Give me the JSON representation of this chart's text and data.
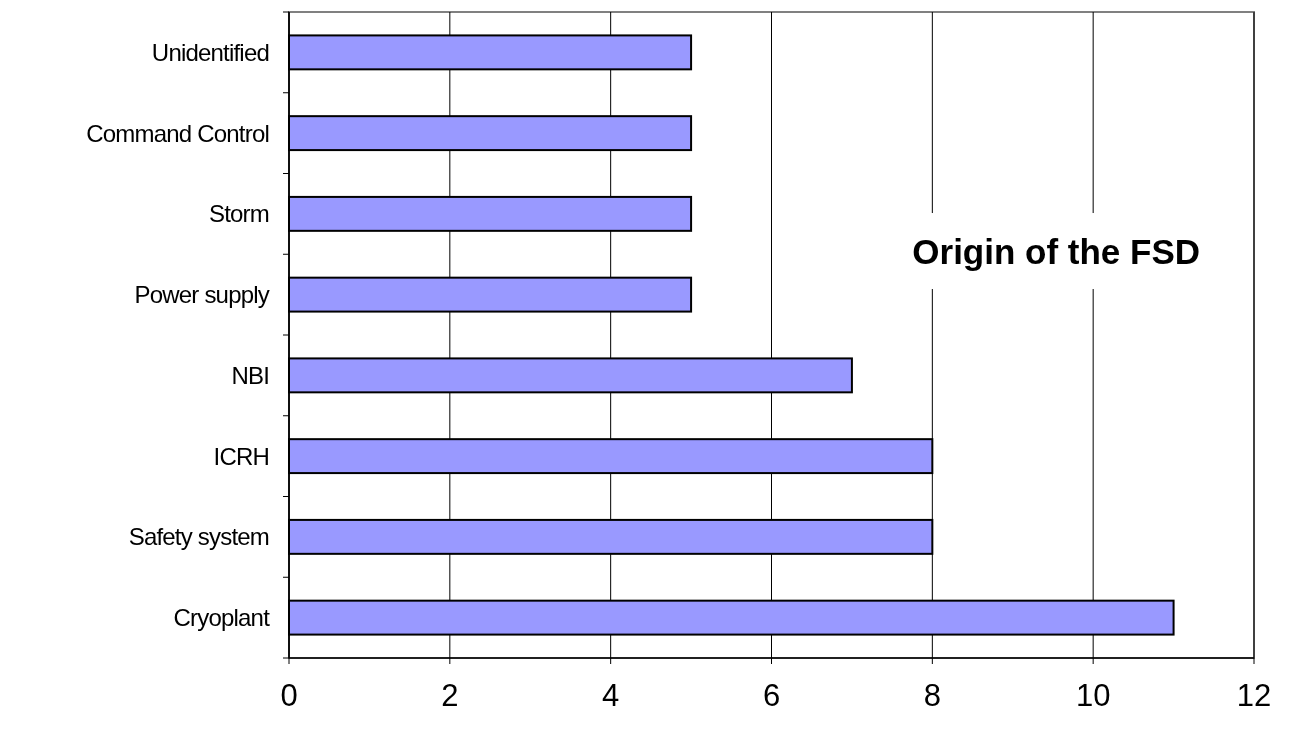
{
  "chart_data": {
    "type": "bar",
    "orientation": "horizontal",
    "title": "Origin of the FSD",
    "categories": [
      "Unidentified",
      "Command Control",
      "Storm",
      "Power supply",
      "NBI",
      "ICRH",
      "Safety system",
      "Cryoplant"
    ],
    "values": [
      5,
      5,
      5,
      5,
      7,
      8,
      8,
      11
    ],
    "color": "#9999ff",
    "xlim": [
      0,
      12
    ],
    "xticks": [
      0,
      2,
      4,
      6,
      8,
      10,
      12
    ],
    "grid": "x"
  }
}
